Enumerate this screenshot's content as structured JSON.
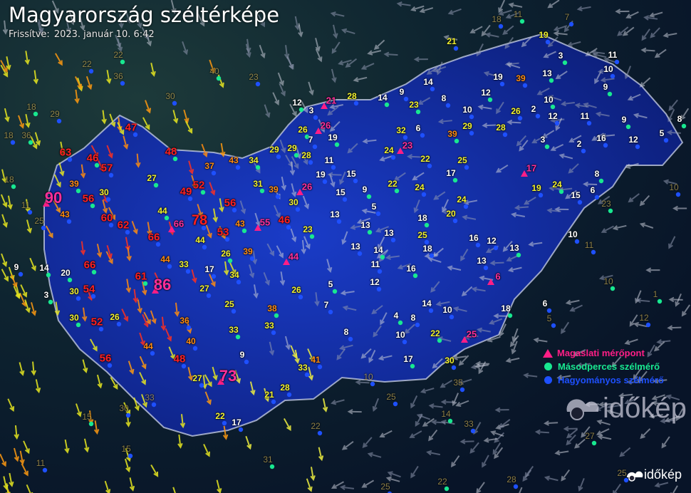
{
  "header": {
    "title": "Magyarország széltérképe",
    "updated_label": "Frissítve:",
    "updated_value": "2023. január 10. 6:42"
  },
  "legend": [
    {
      "label": "Magaslati mérőpont",
      "color": "#ff1e86",
      "icon": "triangle-icon"
    },
    {
      "label": "Másodperces szélmérő",
      "color": "#18e890",
      "icon": "dot-icon"
    },
    {
      "label": "Hagyományos szélmérő",
      "color": "#1e50ff",
      "icon": "dot-icon"
    }
  ],
  "logo": {
    "text": "időkép"
  },
  "colors": {
    "strong": "#ff2020",
    "high": "#ff8c10",
    "moderate": "#f2f230",
    "low": "#ffffff",
    "elevation": "#ff2f9a",
    "country_fill": "#142a9a",
    "border": "#c0c8e0"
  },
  "wind_gusts_kmh": [
    [
      "90",
      "magbig"
    ],
    [
      "86",
      "magbig"
    ],
    [
      "78",
      "redbig"
    ],
    [
      "73",
      "magbig"
    ],
    [
      "66",
      "mag"
    ],
    [
      "66",
      "red"
    ],
    [
      "66",
      "red"
    ],
    [
      "63",
      "red"
    ],
    [
      "62",
      "red"
    ],
    [
      "61",
      "red"
    ],
    [
      "60",
      "red"
    ],
    [
      "57",
      "red"
    ],
    [
      "56",
      "red"
    ],
    [
      "56",
      "red"
    ],
    [
      "56",
      "red"
    ],
    [
      "55",
      "mag"
    ],
    [
      "54",
      "red"
    ],
    [
      "53",
      "red"
    ],
    [
      "52",
      "red"
    ],
    [
      "52",
      "red"
    ],
    [
      "49",
      "red"
    ],
    [
      "48",
      "red"
    ],
    [
      "48",
      "red"
    ],
    [
      "47",
      "red"
    ],
    [
      "46",
      "red"
    ],
    [
      "46",
      "red"
    ],
    [
      "44",
      "orange"
    ],
    [
      "44",
      "yellow"
    ],
    [
      "44",
      "yellow"
    ],
    [
      "44",
      "orange"
    ],
    [
      "44",
      "mag"
    ],
    [
      "43",
      "orange"
    ],
    [
      "43",
      "orange"
    ],
    [
      "43",
      "orange"
    ],
    [
      "41",
      "orange"
    ],
    [
      "40",
      "orange"
    ],
    [
      "39",
      "orange"
    ],
    [
      "39",
      "orange"
    ],
    [
      "39",
      "orange"
    ],
    [
      "38",
      "orange"
    ],
    [
      "37",
      "orange"
    ],
    [
      "36",
      "orange"
    ],
    [
      "34",
      "yellow"
    ],
    [
      "34",
      "yellow"
    ],
    [
      "33",
      "yellow"
    ],
    [
      "33",
      "yellow"
    ],
    [
      "33",
      "yellow"
    ],
    [
      "33",
      "yellow"
    ],
    [
      "31",
      "yellow"
    ],
    [
      "30",
      "yellow"
    ],
    [
      "30",
      "yellow"
    ],
    [
      "30",
      "yellow"
    ],
    [
      "30",
      "yellow"
    ],
    [
      "29",
      "yellow"
    ],
    [
      "29",
      "yellow"
    ],
    [
      "28",
      "yellow"
    ],
    [
      "28",
      "yellow"
    ],
    [
      "27",
      "yellow"
    ],
    [
      "27",
      "yellow"
    ],
    [
      "27",
      "yellow"
    ],
    [
      "26",
      "yellow"
    ],
    [
      "26",
      "yellow"
    ],
    [
      "26",
      "yellow"
    ],
    [
      "26",
      "yellow"
    ],
    [
      "26",
      "mag"
    ],
    [
      "25",
      "yellow"
    ],
    [
      "23",
      "yellow"
    ],
    [
      "22",
      "yellow"
    ],
    [
      "21",
      "yellow"
    ],
    [
      "20",
      "white"
    ],
    [
      "17",
      "white"
    ],
    [
      "17",
      "white"
    ],
    [
      "14",
      "white"
    ],
    [
      "9",
      "white"
    ],
    [
      "9",
      "white"
    ],
    [
      "3",
      "white"
    ],
    [
      "21",
      "mag"
    ],
    [
      "28",
      "yellow"
    ],
    [
      "14",
      "white"
    ],
    [
      "9",
      "white"
    ],
    [
      "14",
      "white"
    ],
    [
      "12",
      "white"
    ],
    [
      "3",
      "white"
    ],
    [
      "7",
      "white"
    ],
    [
      "19",
      "white"
    ],
    [
      "11",
      "white"
    ],
    [
      "19",
      "white"
    ],
    [
      "26",
      "mag"
    ],
    [
      "15",
      "white"
    ],
    [
      "15",
      "white"
    ],
    [
      "9",
      "white"
    ],
    [
      "13",
      "white"
    ],
    [
      "5",
      "white"
    ],
    [
      "13",
      "white"
    ],
    [
      "13",
      "white"
    ],
    [
      "13",
      "white"
    ],
    [
      "14",
      "white"
    ],
    [
      "11",
      "white"
    ],
    [
      "12",
      "white"
    ],
    [
      "5",
      "white"
    ],
    [
      "7",
      "white"
    ],
    [
      "8",
      "white"
    ],
    [
      "4",
      "white"
    ],
    [
      "8",
      "white"
    ],
    [
      "10",
      "white"
    ],
    [
      "17",
      "white"
    ],
    [
      "14",
      "white"
    ],
    [
      "10",
      "white"
    ],
    [
      "22",
      "yellow"
    ],
    [
      "30",
      "yellow"
    ],
    [
      "25",
      "mag"
    ],
    [
      "16",
      "white"
    ],
    [
      "18",
      "white"
    ],
    [
      "25",
      "yellow"
    ],
    [
      "18",
      "white"
    ],
    [
      "20",
      "yellow"
    ],
    [
      "24",
      "yellow"
    ],
    [
      "17",
      "white"
    ],
    [
      "25",
      "yellow"
    ],
    [
      "24",
      "yellow"
    ],
    [
      "22",
      "yellow"
    ],
    [
      "22",
      "yellow"
    ],
    [
      "24",
      "yellow"
    ],
    [
      "23",
      "mag"
    ],
    [
      "32",
      "yellow"
    ],
    [
      "6",
      "white"
    ],
    [
      "39",
      "orange"
    ],
    [
      "29",
      "yellow"
    ],
    [
      "28",
      "yellow"
    ],
    [
      "23",
      "yellow"
    ],
    [
      "8",
      "white"
    ],
    [
      "10",
      "white"
    ],
    [
      "12",
      "white"
    ],
    [
      "19",
      "white"
    ],
    [
      "39",
      "orange"
    ],
    [
      "13",
      "white"
    ],
    [
      "26",
      "yellow"
    ],
    [
      "2",
      "white"
    ],
    [
      "10",
      "white"
    ],
    [
      "12",
      "white"
    ],
    [
      "11",
      "white"
    ],
    [
      "9",
      "white"
    ],
    [
      "12",
      "white"
    ],
    [
      "5",
      "white"
    ],
    [
      "8",
      "white"
    ],
    [
      "16",
      "white"
    ],
    [
      "2",
      "white"
    ],
    [
      "3",
      "white"
    ],
    [
      "17",
      "mag"
    ],
    [
      "19",
      "yellow"
    ],
    [
      "24",
      "yellow"
    ],
    [
      "15",
      "white"
    ],
    [
      "6",
      "white"
    ],
    [
      "8",
      "white"
    ],
    [
      "16",
      "white"
    ],
    [
      "12",
      "white"
    ],
    [
      "13",
      "white"
    ],
    [
      "13",
      "white"
    ],
    [
      "6",
      "mag"
    ],
    [
      "18",
      "white"
    ],
    [
      "6",
      "white"
    ],
    [
      "10",
      "white"
    ],
    [
      "9",
      "white"
    ],
    [
      "10",
      "white"
    ],
    [
      "11",
      "white"
    ],
    [
      "3",
      "white"
    ],
    [
      "19",
      "yellow"
    ],
    [
      "21",
      "yellow"
    ],
    [
      "36",
      "dim"
    ],
    [
      "18",
      "dim"
    ],
    [
      "22",
      "dim"
    ],
    [
      "22",
      "dim"
    ],
    [
      "36",
      "dim"
    ],
    [
      "30",
      "dim"
    ],
    [
      "40",
      "dim"
    ],
    [
      "23",
      "dim"
    ],
    [
      "29",
      "dim"
    ],
    [
      "18",
      "dim"
    ],
    [
      "25",
      "dim"
    ],
    [
      "11",
      "dim"
    ],
    [
      "18",
      "dim"
    ],
    [
      "30",
      "dim"
    ],
    [
      "33",
      "dim"
    ],
    [
      "15",
      "dim"
    ],
    [
      "15",
      "dim"
    ],
    [
      "11",
      "dim"
    ],
    [
      "31",
      "dim"
    ],
    [
      "22",
      "dim"
    ],
    [
      "25",
      "dim"
    ],
    [
      "14",
      "dim"
    ],
    [
      "33",
      "dim"
    ],
    [
      "35",
      "dim"
    ],
    [
      "27",
      "dim"
    ],
    [
      "25",
      "dim"
    ],
    [
      "28",
      "dim"
    ],
    [
      "22",
      "dim"
    ],
    [
      "25",
      "dim"
    ],
    [
      "10",
      "dim"
    ],
    [
      "23",
      "dim"
    ],
    [
      "11",
      "dim"
    ],
    [
      "10",
      "dim"
    ],
    [
      "10",
      "dim"
    ],
    [
      "5",
      "dim"
    ],
    [
      "12",
      "dim"
    ],
    [
      "1",
      "dim"
    ],
    [
      "18",
      "dim"
    ],
    [
      "7",
      "dim"
    ],
    [
      "11",
      "dim"
    ]
  ]
}
